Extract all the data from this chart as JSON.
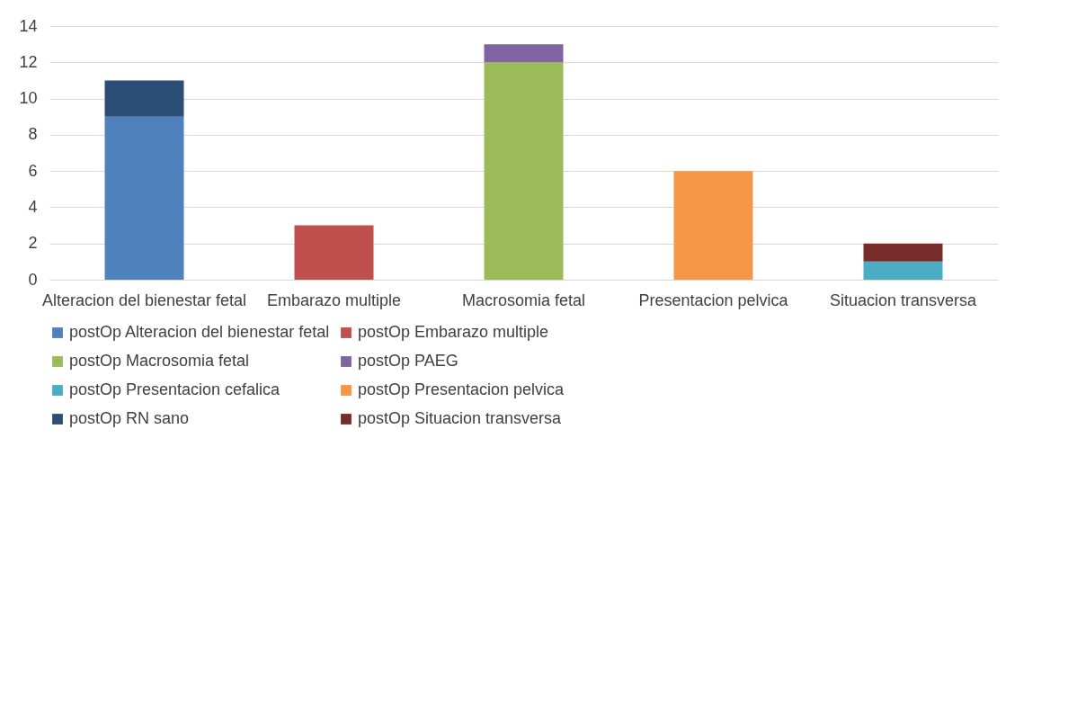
{
  "chart_data": {
    "type": "bar",
    "stacked": true,
    "categories": [
      "Alteracion del bienestar fetal",
      "Embarazo multiple",
      "Macrosomia fetal",
      "Presentacion pelvica",
      "Situacion transversa"
    ],
    "series": [
      {
        "name": "postOp Alteracion del bienestar fetal",
        "color": "#4f81bd",
        "values": [
          9,
          null,
          null,
          null,
          null
        ]
      },
      {
        "name": "postOp Embarazo multiple",
        "color": "#c0504d",
        "values": [
          null,
          3,
          null,
          null,
          null
        ]
      },
      {
        "name": "postOp Macrosomia fetal",
        "color": "#9bbb59",
        "values": [
          null,
          null,
          12,
          null,
          null
        ]
      },
      {
        "name": "postOp PAEG",
        "color": "#8064a2",
        "values": [
          null,
          null,
          1,
          null,
          null
        ]
      },
      {
        "name": "postOp Presentacion cefalica",
        "color": "#4bacc6",
        "values": [
          null,
          null,
          null,
          null,
          1
        ]
      },
      {
        "name": "postOp Presentacion pelvica",
        "color": "#f79646",
        "values": [
          null,
          null,
          null,
          6,
          null
        ]
      },
      {
        "name": "postOp RN sano",
        "color": "#2c4d75",
        "values": [
          2,
          null,
          null,
          null,
          null
        ]
      },
      {
        "name": "postOp Situacion transversa",
        "color": "#772c2a",
        "values": [
          null,
          null,
          null,
          null,
          1
        ]
      }
    ],
    "ylim": [
      0,
      14
    ],
    "yticks": [
      0,
      2,
      4,
      6,
      8,
      10,
      12,
      14
    ],
    "grid": "y",
    "legend": "bottom"
  }
}
